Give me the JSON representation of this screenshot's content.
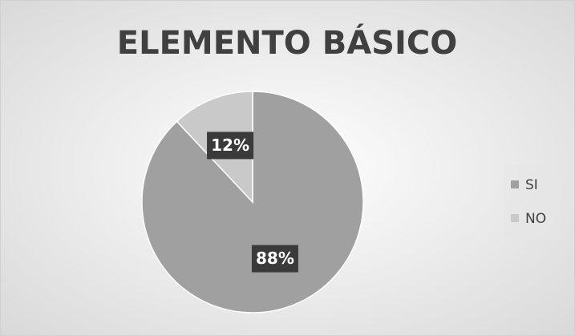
{
  "chart_data": {
    "type": "pie",
    "title": "ELEMENTO BÁSICO",
    "categories": [
      "SI",
      "NO"
    ],
    "values": [
      88,
      12
    ],
    "value_labels": [
      "88%",
      "12%"
    ],
    "colors": [
      "#a0a0a0",
      "#c9c9c9"
    ],
    "legend": "right"
  }
}
